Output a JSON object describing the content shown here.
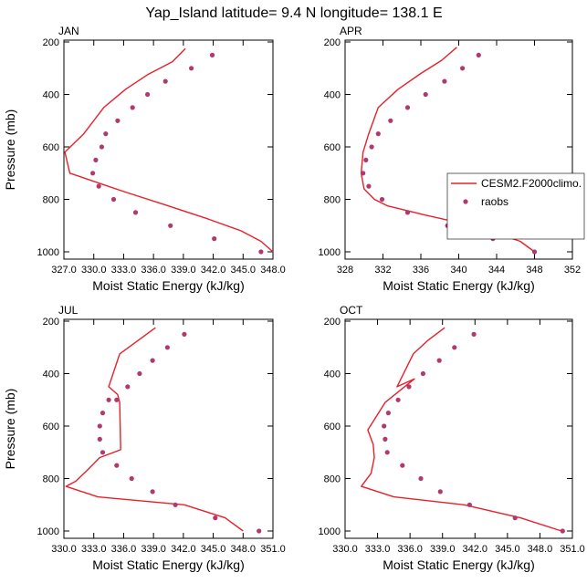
{
  "title": "Yap_Island  latitude= 9.4 N longitude= 138.1 E",
  "legend": {
    "model_label": "CESM2.F2000climo.",
    "obs_label": "raobs"
  },
  "colors": {
    "model_line": "#e8202a",
    "obs_marker": "#b03a6e",
    "axis": "#000000"
  },
  "chart_data": [
    {
      "type": "line",
      "panel": "JAN",
      "title": "JAN",
      "xlabel": "Moist Static Energy (kJ/kg)",
      "ylabel": "Pressure (mb)",
      "xlim": [
        327.0,
        348.0
      ],
      "ylim": [
        1000,
        200
      ],
      "x_ticks": [
        "327.0",
        "330.0",
        "333.0",
        "336.0",
        "339.0",
        "342.0",
        "345.0",
        "348.0"
      ],
      "x_tick_values": [
        327,
        330,
        333,
        336,
        339,
        342,
        345,
        348
      ],
      "y_ticks": [
        "200",
        "400",
        "600",
        "800",
        "1000"
      ],
      "y_tick_values": [
        200,
        400,
        600,
        800,
        1000
      ],
      "series": [
        {
          "name": "CESM2.F2000climo.",
          "kind": "line",
          "x": [
            339.2,
            337.9,
            335.4,
            333.2,
            331.0,
            329.0,
            327.1,
            327.6,
            333.0,
            337.5,
            341.5,
            344.8,
            346.8,
            348.0
          ],
          "y": [
            225,
            275,
            325,
            380,
            450,
            550,
            620,
            700,
            770,
            825,
            875,
            920,
            960,
            1000
          ]
        },
        {
          "name": "raobs",
          "kind": "scatter",
          "x": [
            341.9,
            339.8,
            337.2,
            335.4,
            333.9,
            332.4,
            331.2,
            330.8,
            330.2,
            329.9,
            330.5,
            332.0,
            334.2,
            337.7,
            342.1,
            346.8
          ],
          "y": [
            250,
            300,
            350,
            400,
            450,
            500,
            550,
            600,
            650,
            700,
            750,
            800,
            850,
            900,
            950,
            1000
          ]
        }
      ]
    },
    {
      "type": "line",
      "panel": "APR",
      "title": "APR",
      "xlabel": "Moist Static Energy (kJ/kg)",
      "ylabel": "",
      "xlim": [
        328,
        352
      ],
      "ylim": [
        1000,
        200
      ],
      "x_ticks": [
        "328",
        "332",
        "336",
        "340",
        "344",
        "348",
        "352"
      ],
      "x_tick_values": [
        328,
        332,
        336,
        340,
        344,
        348,
        352
      ],
      "y_ticks": [
        "200",
        "400",
        "600",
        "800",
        "1000"
      ],
      "y_tick_values": [
        200,
        400,
        600,
        800,
        1000
      ],
      "series": [
        {
          "name": "CESM2.F2000climo.",
          "kind": "line",
          "x": [
            339.8,
            338.2,
            336.0,
            333.6,
            331.5,
            330.5,
            329.9,
            329.7,
            330.0,
            331.1,
            332.5,
            336.5,
            342.0,
            346.5,
            348.0
          ],
          "y": [
            220,
            270,
            320,
            380,
            450,
            550,
            620,
            700,
            760,
            800,
            825,
            860,
            905,
            960,
            1000
          ]
        },
        {
          "name": "raobs",
          "kind": "scatter",
          "x": [
            342.1,
            340.4,
            338.5,
            336.5,
            334.6,
            332.8,
            331.5,
            330.8,
            330.2,
            329.9,
            330.5,
            331.9,
            334.6,
            338.8,
            343.6,
            348.0
          ],
          "y": [
            250,
            300,
            350,
            400,
            450,
            500,
            550,
            600,
            650,
            700,
            750,
            800,
            850,
            900,
            950,
            1000
          ]
        }
      ]
    },
    {
      "type": "line",
      "panel": "JUL",
      "title": "JUL",
      "xlabel": "Moist Static Energy (kJ/kg)",
      "ylabel": "Pressure (mb)",
      "xlim": [
        330.0,
        351.0
      ],
      "ylim": [
        1000,
        200
      ],
      "x_ticks": [
        "330.0",
        "333.0",
        "336.0",
        "339.0",
        "342.0",
        "345.0",
        "348.0",
        "351.0"
      ],
      "x_tick_values": [
        330,
        333,
        336,
        339,
        342,
        345,
        348,
        351
      ],
      "y_ticks": [
        "200",
        "400",
        "600",
        "800",
        "1000"
      ],
      "y_tick_values": [
        200,
        400,
        600,
        800,
        1000
      ],
      "series": [
        {
          "name": "CESM2.F2000climo.",
          "kind": "line",
          "x": [
            339.2,
            337.4,
            335.6,
            334.5,
            335.4,
            335.6,
            335.7,
            333.6,
            332.3,
            331.2,
            330.2,
            333.4,
            342.1,
            346.2,
            348.0
          ],
          "y": [
            225,
            275,
            325,
            450,
            480,
            510,
            690,
            720,
            770,
            810,
            830,
            870,
            900,
            950,
            1000
          ]
        },
        {
          "name": "raobs",
          "kind": "scatter",
          "x": [
            342.1,
            340.4,
            338.9,
            337.6,
            336.4,
            335.3,
            334.5,
            333.9,
            333.6,
            333.6,
            333.9,
            335.3,
            336.8,
            338.9,
            341.2,
            345.2,
            349.6
          ],
          "y": [
            250,
            300,
            350,
            400,
            450,
            500,
            500,
            550,
            600,
            650,
            700,
            750,
            800,
            850,
            900,
            950,
            1000
          ]
        }
      ]
    },
    {
      "type": "line",
      "panel": "OCT",
      "title": "OCT",
      "xlabel": "Moist Static Energy (kJ/kg)",
      "ylabel": "",
      "xlim": [
        330.0,
        351.0
      ],
      "ylim": [
        1000,
        200
      ],
      "x_ticks": [
        "330.0",
        "333.0",
        "336.0",
        "339.0",
        "342.0",
        "345.0",
        "348.0",
        "351.0"
      ],
      "x_tick_values": [
        330,
        333,
        336,
        339,
        342,
        345,
        348,
        351
      ],
      "y_ticks": [
        "200",
        "400",
        "600",
        "800",
        "1000"
      ],
      "y_tick_values": [
        200,
        400,
        600,
        800,
        1000
      ],
      "series": [
        {
          "name": "CESM2.F2000climo.",
          "kind": "line",
          "x": [
            339.2,
            337.6,
            336.3,
            334.8,
            336.4,
            333.7,
            332.1,
            332.6,
            332.7,
            332.4,
            331.5,
            334.5,
            341.0,
            346.2,
            350.0
          ],
          "y": [
            225,
            275,
            325,
            450,
            420,
            510,
            615,
            670,
            720,
            780,
            830,
            870,
            900,
            950,
            1000
          ]
        },
        {
          "name": "raobs",
          "kind": "scatter",
          "x": [
            341.9,
            340.1,
            338.7,
            337.2,
            335.9,
            334.9,
            334.0,
            333.6,
            333.7,
            333.9,
            335.3,
            337.0,
            338.8,
            341.5,
            345.7,
            350.1
          ],
          "y": [
            250,
            300,
            350,
            400,
            450,
            500,
            550,
            600,
            650,
            700,
            750,
            800,
            850,
            900,
            950,
            1000
          ]
        }
      ]
    }
  ]
}
